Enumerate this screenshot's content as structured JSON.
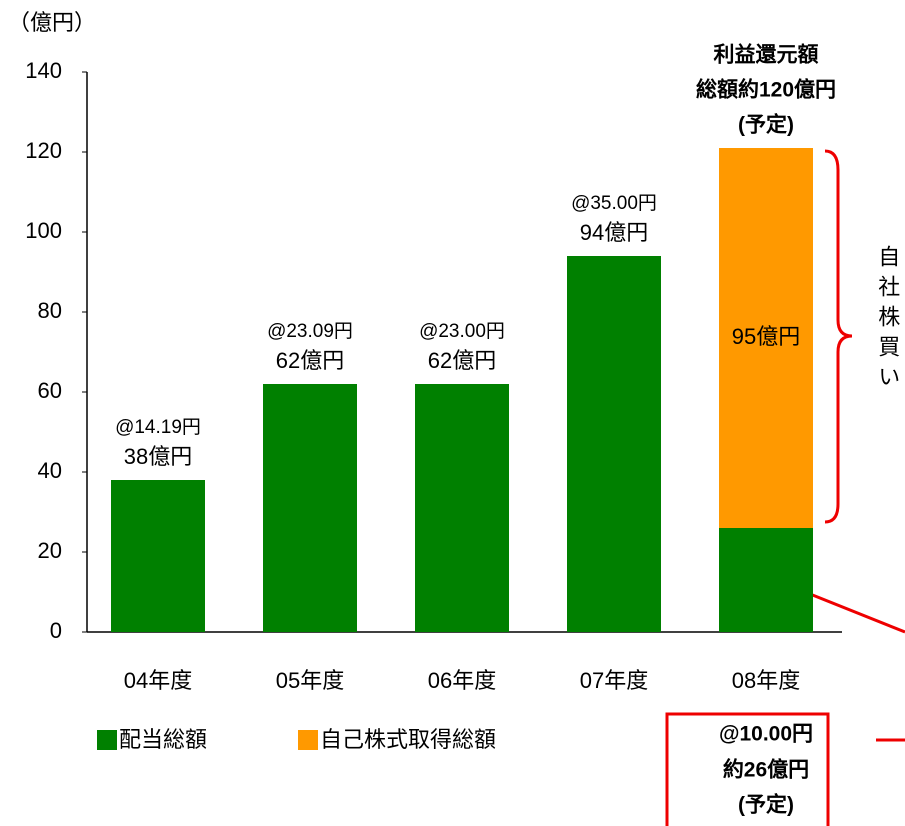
{
  "chart_data": {
    "type": "stacked_bar",
    "y_axis_label": "（億円）",
    "categories": [
      "04年度",
      "05年度",
      "06年度",
      "07年度",
      "08年度"
    ],
    "series": [
      {
        "name": "配当総額",
        "color": "#008000",
        "values": [
          38,
          62,
          62,
          94,
          26
        ],
        "value_labels": [
          "38億円",
          "62億円",
          "62億円",
          "94億円",
          "約26億円"
        ]
      },
      {
        "name": "自己株式取得総額",
        "color": "#ff9900",
        "values": [
          null,
          null,
          null,
          null,
          95
        ],
        "value_labels": [
          null,
          null,
          null,
          null,
          "95億円"
        ]
      }
    ],
    "per_share_labels": [
      "@14.19円",
      "@23.09円",
      "@23.00円",
      "@35.00円",
      "@10.00円"
    ],
    "callout_note": "(予定)",
    "total_label": [
      "利益還元額",
      "総額約120億円",
      "(予定)"
    ],
    "brace_label": "自社株買い",
    "ylim": [
      0,
      140
    ],
    "yticks": [
      0,
      20,
      40,
      60,
      80,
      100,
      120,
      140
    ],
    "grid": false
  }
}
